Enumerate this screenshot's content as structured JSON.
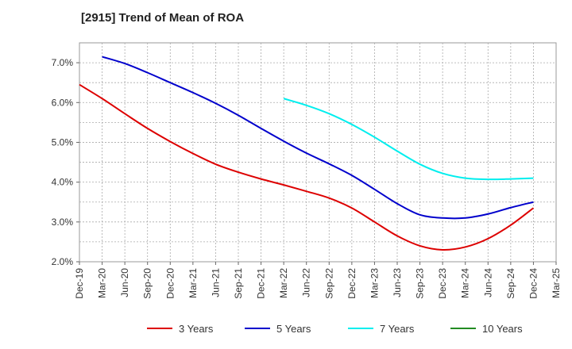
{
  "chart_data": {
    "type": "line",
    "title": "[2915]  Trend of Mean of ROA",
    "xlabel": "",
    "ylabel": "",
    "ylim": [
      2.0,
      7.5
    ],
    "yticks": [
      2.0,
      3.0,
      4.0,
      5.0,
      6.0,
      7.0
    ],
    "ytick_labels": [
      "2.0%",
      "3.0%",
      "4.0%",
      "5.0%",
      "6.0%",
      "7.0%"
    ],
    "xtick_labels": [
      "Dec-19",
      "Mar-20",
      "Jun-20",
      "Sep-20",
      "Dec-20",
      "Mar-21",
      "Jun-21",
      "Sep-21",
      "Dec-21",
      "Mar-22",
      "Jun-22",
      "Sep-22",
      "Dec-22",
      "Mar-23",
      "Jun-23",
      "Sep-23",
      "Dec-23",
      "Mar-24",
      "Jun-24",
      "Sep-24",
      "Dec-24",
      "Mar-25"
    ],
    "x": [
      "Dec-19",
      "Mar-20",
      "Jun-20",
      "Sep-20",
      "Dec-20",
      "Mar-21",
      "Jun-21",
      "Sep-21",
      "Dec-21",
      "Mar-22",
      "Jun-22",
      "Sep-22",
      "Dec-22",
      "Mar-23",
      "Jun-23",
      "Sep-23",
      "Dec-23",
      "Mar-24",
      "Jun-24",
      "Sep-24",
      "Dec-24"
    ],
    "grid": true,
    "legend_position": "bottom",
    "series": [
      {
        "name": "3 Years",
        "color": "#dd0000",
        "values": [
          6.45,
          6.1,
          5.72,
          5.35,
          5.02,
          4.72,
          4.45,
          4.25,
          4.08,
          3.93,
          3.77,
          3.6,
          3.35,
          3.0,
          2.65,
          2.4,
          2.3,
          2.37,
          2.58,
          2.92,
          3.35
        ]
      },
      {
        "name": "5 Years",
        "color": "#0000cc",
        "values": [
          null,
          7.15,
          6.98,
          6.75,
          6.5,
          6.25,
          5.98,
          5.68,
          5.35,
          5.03,
          4.73,
          4.46,
          4.17,
          3.82,
          3.46,
          3.18,
          3.1,
          3.1,
          3.2,
          3.36,
          3.5
        ]
      },
      {
        "name": "7 Years",
        "color": "#00eeee",
        "values": [
          null,
          null,
          null,
          null,
          null,
          null,
          null,
          null,
          null,
          6.1,
          5.93,
          5.72,
          5.45,
          5.13,
          4.78,
          4.45,
          4.22,
          4.1,
          4.07,
          4.08,
          4.1
        ]
      },
      {
        "name": "10 Years",
        "color": "#228b22",
        "values": [
          null,
          null,
          null,
          null,
          null,
          null,
          null,
          null,
          null,
          null,
          null,
          null,
          null,
          null,
          null,
          null,
          null,
          null,
          null,
          null,
          null
        ]
      }
    ]
  }
}
